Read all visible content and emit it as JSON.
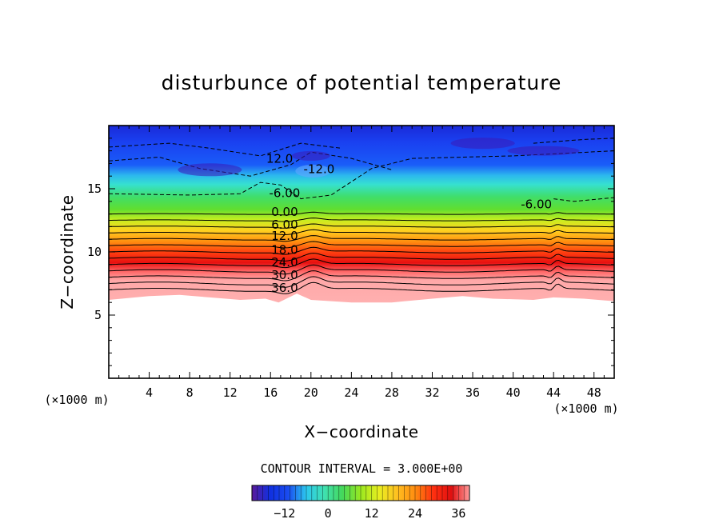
{
  "chart_data": {
    "type": "contour",
    "title": "disturbunce of potential temperature",
    "xlabel": "X−coordinate",
    "ylabel": "Z−coordinate",
    "x_unit": "(×1000 m)",
    "x_unit_right": "(×1000 m)",
    "xlim": [
      0,
      50
    ],
    "ylim": [
      0,
      20
    ],
    "x_ticks": [
      4,
      8,
      12,
      16,
      20,
      24,
      28,
      32,
      36,
      40,
      44,
      48
    ],
    "y_ticks": [
      5,
      10,
      15
    ],
    "contour_interval_text": "CONTOUR INTERVAL = 3.000E+00",
    "contour_interval": 3,
    "fill_top_z": 6.3,
    "contour_labels": [
      {
        "text": "36.0",
        "x": 17.4,
        "z": 7.1
      },
      {
        "text": "30.0",
        "x": 17.4,
        "z": 8.1
      },
      {
        "text": "24.0",
        "x": 17.4,
        "z": 9.1
      },
      {
        "text": "18.0",
        "x": 17.4,
        "z": 10.1
      },
      {
        "text": "12.0",
        "x": 17.4,
        "z": 11.2
      },
      {
        "text": "6.00",
        "x": 17.4,
        "z": 12.1
      },
      {
        "text": "0.00",
        "x": 17.4,
        "z": 13.1
      },
      {
        "text": "-6.00",
        "x": 17.4,
        "z": 14.6
      },
      {
        "text": "12.0",
        "x": 16.9,
        "z": 17.3
      },
      {
        "text": "-12.0",
        "x": 20.8,
        "z": 16.5
      },
      {
        "text": "-6.00",
        "x": 42.3,
        "z": 13.7
      }
    ],
    "colorbar": {
      "min": -21,
      "max": 39,
      "tick_labels": [
        "−12",
        "0",
        "12",
        "24",
        "36"
      ],
      "tick_values": [
        -12,
        0,
        12,
        24,
        36
      ],
      "colors": [
        "#5a1a9a",
        "#1030e0",
        "#2cc8ee",
        "#44d85a",
        "#b8ee20",
        "#ff8c10",
        "#e01010",
        "#ff9c9c"
      ]
    }
  }
}
